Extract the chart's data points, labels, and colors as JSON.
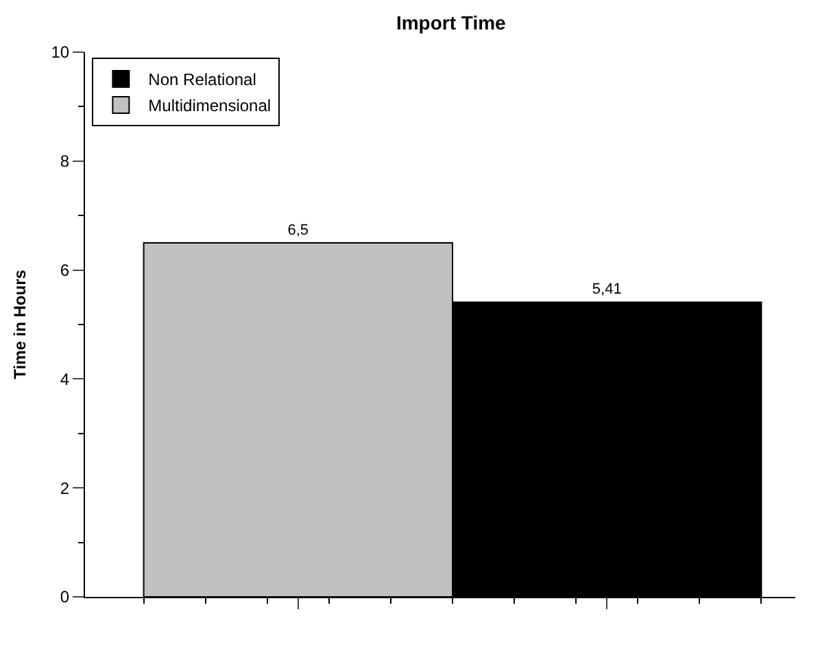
{
  "chart_data": {
    "type": "bar",
    "title": "Import Time",
    "ylabel": "Time in Hours",
    "categories": [
      null,
      null
    ],
    "series": [
      {
        "name": "Non Relational",
        "color": "#000000",
        "values": [
          null,
          5.41
        ],
        "value_labels": [
          null,
          "5,41"
        ]
      },
      {
        "name": "Multidimensional",
        "color": "#c0c0c0",
        "values": [
          6.5,
          null
        ],
        "value_labels": [
          "6,5",
          null
        ]
      }
    ],
    "ylim": [
      0,
      10
    ],
    "yticks": [
      0,
      2,
      4,
      6,
      8,
      10
    ],
    "legend": "top left",
    "tick_labels": "y"
  }
}
